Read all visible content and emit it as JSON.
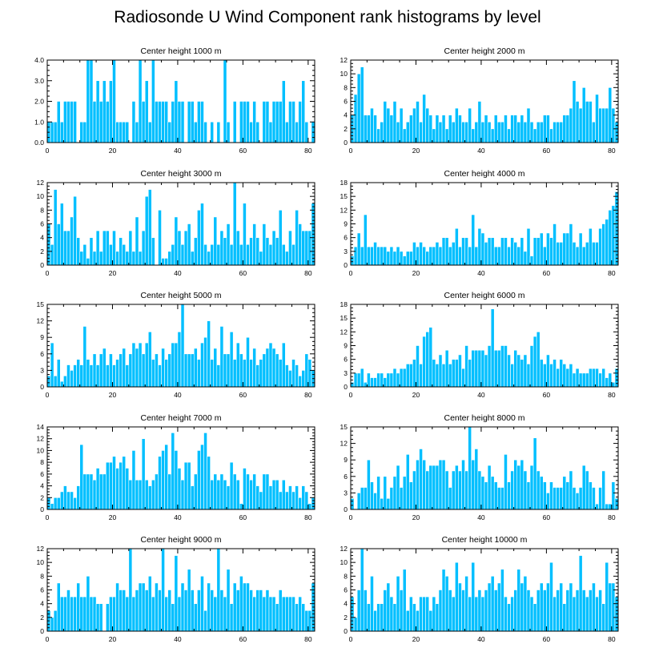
{
  "title": "Radiosonde U Wind Component rank histograms by level",
  "colors": {
    "bar": "#00bfff",
    "axis": "#000000",
    "background": "#ffffff"
  },
  "chart_data": [
    {
      "type": "bar",
      "title": "Center height 1000 m",
      "xlabel": "",
      "ylabel": "",
      "xlim": [
        0,
        82
      ],
      "ylim": [
        0,
        4
      ],
      "xticks": [
        0,
        20,
        40,
        60,
        80
      ],
      "xtick_labels": [
        "0",
        "20",
        "40",
        "60",
        "80"
      ],
      "yticks": [
        0,
        1,
        2,
        3,
        4
      ],
      "ytick_labels": [
        "0.0",
        "1.0",
        "2.0",
        "3.0",
        "4.0"
      ],
      "values": [
        1,
        1,
        1,
        2,
        1,
        2,
        2,
        2,
        2,
        0,
        1,
        1,
        4,
        4,
        2,
        3,
        2,
        3,
        2,
        3,
        4,
        1,
        1,
        1,
        1,
        0,
        2,
        1,
        4,
        2,
        3,
        1,
        4,
        2,
        2,
        2,
        2,
        1,
        2,
        3,
        2,
        2,
        0,
        2,
        2,
        1,
        2,
        2,
        1,
        0,
        1,
        0,
        1,
        0,
        4,
        1,
        0,
        2,
        0,
        2,
        2,
        2,
        1,
        2,
        1,
        0,
        2,
        2,
        1,
        2,
        2,
        2,
        3,
        1,
        2,
        2,
        1,
        2,
        3,
        1,
        0,
        1
      ]
    },
    {
      "type": "bar",
      "title": "Center height 2000 m",
      "xlabel": "",
      "ylabel": "",
      "xlim": [
        0,
        82
      ],
      "ylim": [
        0,
        12
      ],
      "xticks": [
        0,
        20,
        40,
        60,
        80
      ],
      "xtick_labels": [
        "0",
        "20",
        "40",
        "60",
        "80"
      ],
      "yticks": [
        0,
        2,
        4,
        6,
        8,
        10,
        12
      ],
      "ytick_labels": [
        "0",
        "2",
        "4",
        "6",
        "8",
        "10",
        "12"
      ],
      "values": [
        4,
        7,
        10,
        11,
        4,
        4,
        5,
        4,
        2,
        3,
        6,
        5,
        4,
        6,
        3,
        5,
        2,
        3,
        4,
        5,
        6,
        3,
        7,
        5,
        4,
        2,
        4,
        3,
        4,
        2,
        4,
        3,
        5,
        4,
        3,
        3,
        5,
        2,
        3,
        6,
        3,
        4,
        3,
        2,
        4,
        3,
        3,
        4,
        2,
        4,
        4,
        3,
        4,
        3,
        5,
        3,
        2,
        3,
        3,
        4,
        4,
        2,
        3,
        3,
        3,
        4,
        4,
        5,
        9,
        6,
        5,
        8,
        6,
        6,
        3,
        7,
        5,
        5,
        5,
        8,
        5,
        3
      ]
    },
    {
      "type": "bar",
      "title": "Center height 3000 m",
      "xlabel": "",
      "ylabel": "",
      "xlim": [
        0,
        82
      ],
      "ylim": [
        0,
        12
      ],
      "xticks": [
        0,
        20,
        40,
        60,
        80
      ],
      "xtick_labels": [
        "0",
        "20",
        "40",
        "60",
        "80"
      ],
      "yticks": [
        0,
        2,
        4,
        6,
        8,
        10,
        12
      ],
      "ytick_labels": [
        "0",
        "2",
        "4",
        "6",
        "8",
        "10",
        "12"
      ],
      "values": [
        6,
        3,
        11,
        6,
        9,
        5,
        5,
        7,
        10,
        4,
        2,
        3,
        1,
        4,
        2,
        5,
        2,
        5,
        5,
        3,
        5,
        2,
        4,
        3,
        2,
        5,
        2,
        7,
        2,
        5,
        10,
        11,
        4,
        0,
        8,
        1,
        1,
        2,
        3,
        7,
        5,
        3,
        5,
        6,
        2,
        4,
        8,
        9,
        3,
        2,
        3,
        7,
        3,
        5,
        4,
        6,
        3,
        12,
        5,
        3,
        9,
        3,
        4,
        6,
        4,
        2,
        6,
        4,
        3,
        5,
        4,
        8,
        3,
        2,
        5,
        3,
        8,
        6,
        5,
        5,
        5,
        9
      ]
    },
    {
      "type": "bar",
      "title": "Center height 4000 m",
      "xlabel": "",
      "ylabel": "",
      "xlim": [
        0,
        82
      ],
      "ylim": [
        0,
        18
      ],
      "xticks": [
        0,
        20,
        40,
        60,
        80
      ],
      "xtick_labels": [
        "0",
        "20",
        "40",
        "60",
        "80"
      ],
      "yticks": [
        0,
        3,
        6,
        9,
        12,
        15,
        18
      ],
      "ytick_labels": [
        "0",
        "3",
        "6",
        "9",
        "12",
        "15",
        "18"
      ],
      "values": [
        2,
        4,
        7,
        4,
        11,
        4,
        4,
        5,
        4,
        4,
        4,
        3,
        4,
        3,
        4,
        3,
        2,
        3,
        3,
        5,
        4,
        5,
        4,
        3,
        4,
        4,
        5,
        4,
        6,
        6,
        4,
        5,
        8,
        4,
        6,
        6,
        4,
        11,
        4,
        8,
        7,
        5,
        6,
        6,
        4,
        4,
        6,
        6,
        4,
        6,
        5,
        4,
        6,
        3,
        8,
        2,
        6,
        6,
        7,
        4,
        7,
        6,
        9,
        5,
        5,
        7,
        7,
        9,
        5,
        4,
        7,
        4,
        5,
        8,
        5,
        5,
        8,
        9,
        10,
        12,
        13,
        16
      ]
    },
    {
      "type": "bar",
      "title": "Center height 5000 m",
      "xlabel": "",
      "ylabel": "",
      "xlim": [
        0,
        82
      ],
      "ylim": [
        0,
        15
      ],
      "xticks": [
        0,
        20,
        40,
        60,
        80
      ],
      "xtick_labels": [
        "0",
        "20",
        "40",
        "60",
        "80"
      ],
      "yticks": [
        0,
        3,
        6,
        9,
        12,
        15
      ],
      "ytick_labels": [
        "0",
        "3",
        "6",
        "9",
        "12",
        "15"
      ],
      "values": [
        2,
        8,
        2,
        5,
        1,
        2,
        4,
        3,
        4,
        5,
        4,
        11,
        5,
        4,
        6,
        4,
        6,
        7,
        4,
        6,
        4,
        5,
        6,
        7,
        4,
        6,
        8,
        7,
        8,
        6,
        8,
        10,
        5,
        6,
        4,
        7,
        5,
        6,
        8,
        8,
        10,
        15,
        6,
        6,
        6,
        7,
        5,
        8,
        9,
        12,
        5,
        7,
        4,
        11,
        6,
        6,
        10,
        5,
        8,
        6,
        5,
        9,
        5,
        7,
        4,
        5,
        6,
        7,
        8,
        7,
        6,
        5,
        8,
        4,
        3,
        5,
        4,
        2,
        3,
        6,
        5,
        3
      ]
    },
    {
      "type": "bar",
      "title": "Center height 6000 m",
      "xlabel": "",
      "ylabel": "",
      "xlim": [
        0,
        82
      ],
      "ylim": [
        0,
        18
      ],
      "xticks": [
        0,
        20,
        40,
        60,
        80
      ],
      "xtick_labels": [
        "0",
        "20",
        "40",
        "60",
        "80"
      ],
      "yticks": [
        0,
        3,
        6,
        9,
        12,
        15,
        18
      ],
      "ytick_labels": [
        "0",
        "3",
        "6",
        "9",
        "12",
        "15",
        "18"
      ],
      "values": [
        1,
        3,
        3,
        4,
        1,
        3,
        2,
        2,
        3,
        3,
        2,
        3,
        3,
        4,
        3,
        4,
        4,
        5,
        5,
        6,
        9,
        5,
        11,
        12,
        13,
        6,
        5,
        7,
        5,
        8,
        5,
        6,
        6,
        7,
        4,
        9,
        6,
        8,
        8,
        8,
        8,
        7,
        9,
        17,
        8,
        8,
        9,
        9,
        7,
        5,
        8,
        7,
        6,
        7,
        5,
        9,
        11,
        12,
        6,
        5,
        7,
        5,
        6,
        4,
        6,
        5,
        4,
        5,
        3,
        4,
        3,
        3,
        3,
        4,
        4,
        4,
        3,
        4,
        2,
        3,
        1,
        4
      ]
    },
    {
      "type": "bar",
      "title": "Center height 7000 m",
      "xlabel": "",
      "ylabel": "",
      "xlim": [
        0,
        82
      ],
      "ylim": [
        0,
        14
      ],
      "xticks": [
        0,
        20,
        40,
        60,
        80
      ],
      "xtick_labels": [
        "0",
        "20",
        "40",
        "60",
        "80"
      ],
      "yticks": [
        0,
        2,
        4,
        6,
        8,
        10,
        12,
        14
      ],
      "ytick_labels": [
        "0",
        "2",
        "4",
        "6",
        "8",
        "10",
        "12",
        "14"
      ],
      "values": [
        2,
        1,
        2,
        2,
        3,
        4,
        3,
        3,
        2,
        4,
        11,
        6,
        6,
        6,
        5,
        7,
        6,
        6,
        8,
        8,
        9,
        7,
        8,
        9,
        7,
        5,
        10,
        5,
        5,
        12,
        5,
        4,
        5,
        6,
        9,
        10,
        11,
        6,
        13,
        10,
        7,
        5,
        8,
        8,
        4,
        6,
        10,
        11,
        13,
        9,
        5,
        6,
        5,
        6,
        5,
        4,
        8,
        6,
        5,
        1,
        7,
        6,
        5,
        6,
        4,
        3,
        6,
        6,
        4,
        5,
        5,
        3,
        5,
        3,
        4,
        3,
        4,
        2,
        4,
        3,
        1,
        2
      ]
    },
    {
      "type": "bar",
      "title": "Center height 8000 m",
      "xlabel": "",
      "ylabel": "",
      "xlim": [
        0,
        82
      ],
      "ylim": [
        0,
        15
      ],
      "xticks": [
        0,
        20,
        40,
        60,
        80
      ],
      "xtick_labels": [
        "0",
        "20",
        "40",
        "60",
        "80"
      ],
      "yticks": [
        0,
        3,
        6,
        9,
        12,
        15
      ],
      "ytick_labels": [
        "0",
        "3",
        "6",
        "9",
        "12",
        "15"
      ],
      "values": [
        2,
        0,
        3,
        4,
        4,
        9,
        5,
        3,
        6,
        2,
        6,
        2,
        4,
        6,
        8,
        4,
        6,
        10,
        5,
        7,
        9,
        11,
        9,
        7,
        8,
        8,
        8,
        9,
        9,
        7,
        4,
        7,
        8,
        7,
        9,
        7,
        15,
        9,
        11,
        7,
        6,
        5,
        8,
        6,
        5,
        4,
        4,
        10,
        5,
        7,
        9,
        8,
        9,
        7,
        5,
        8,
        13,
        7,
        6,
        5,
        3,
        5,
        4,
        4,
        4,
        6,
        5,
        7,
        4,
        3,
        4,
        8,
        7,
        5,
        4,
        1,
        4,
        7,
        1,
        1,
        5,
        2
      ]
    },
    {
      "type": "bar",
      "title": "Center height 9000 m",
      "xlabel": "",
      "ylabel": "",
      "xlim": [
        0,
        82
      ],
      "ylim": [
        0,
        12
      ],
      "xticks": [
        0,
        20,
        40,
        60,
        80
      ],
      "xtick_labels": [
        "0",
        "20",
        "40",
        "60",
        "80"
      ],
      "yticks": [
        0,
        2,
        4,
        6,
        8,
        10,
        12
      ],
      "ytick_labels": [
        "0",
        "2",
        "4",
        "6",
        "8",
        "10",
        "12"
      ],
      "values": [
        3,
        2,
        3,
        7,
        5,
        5,
        6,
        5,
        5,
        7,
        5,
        5,
        8,
        5,
        5,
        4,
        4,
        0,
        4,
        5,
        5,
        7,
        6,
        6,
        5,
        12,
        5,
        6,
        7,
        7,
        6,
        8,
        5,
        7,
        6,
        12,
        5,
        6,
        4,
        11,
        5,
        7,
        6,
        9,
        6,
        4,
        6,
        8,
        3,
        7,
        6,
        5,
        12,
        6,
        5,
        9,
        4,
        7,
        6,
        8,
        7,
        7,
        6,
        5,
        6,
        6,
        5,
        6,
        5,
        5,
        4,
        6,
        5,
        5,
        5,
        5,
        4,
        5,
        4,
        3,
        3,
        7
      ]
    },
    {
      "type": "bar",
      "title": "Center height 10000 m",
      "xlabel": "",
      "ylabel": "",
      "xlim": [
        0,
        82
      ],
      "ylim": [
        0,
        12
      ],
      "xticks": [
        0,
        20,
        40,
        60,
        80
      ],
      "xtick_labels": [
        "0",
        "20",
        "40",
        "60",
        "80"
      ],
      "yticks": [
        0,
        2,
        4,
        6,
        8,
        10,
        12
      ],
      "ytick_labels": [
        "0",
        "2",
        "4",
        "6",
        "8",
        "10",
        "12"
      ],
      "values": [
        5,
        2,
        6,
        12,
        6,
        4,
        8,
        3,
        4,
        4,
        6,
        7,
        5,
        4,
        8,
        6,
        9,
        3,
        5,
        4,
        3,
        5,
        5,
        5,
        3,
        5,
        4,
        6,
        9,
        8,
        6,
        5,
        10,
        7,
        6,
        8,
        5,
        10,
        5,
        6,
        5,
        6,
        7,
        8,
        6,
        7,
        9,
        5,
        4,
        5,
        6,
        9,
        7,
        8,
        6,
        5,
        4,
        6,
        7,
        6,
        7,
        10,
        5,
        6,
        7,
        4,
        6,
        7,
        5,
        6,
        11,
        6,
        5,
        6,
        7,
        5,
        6,
        4,
        10,
        7,
        7,
        5
      ]
    }
  ]
}
